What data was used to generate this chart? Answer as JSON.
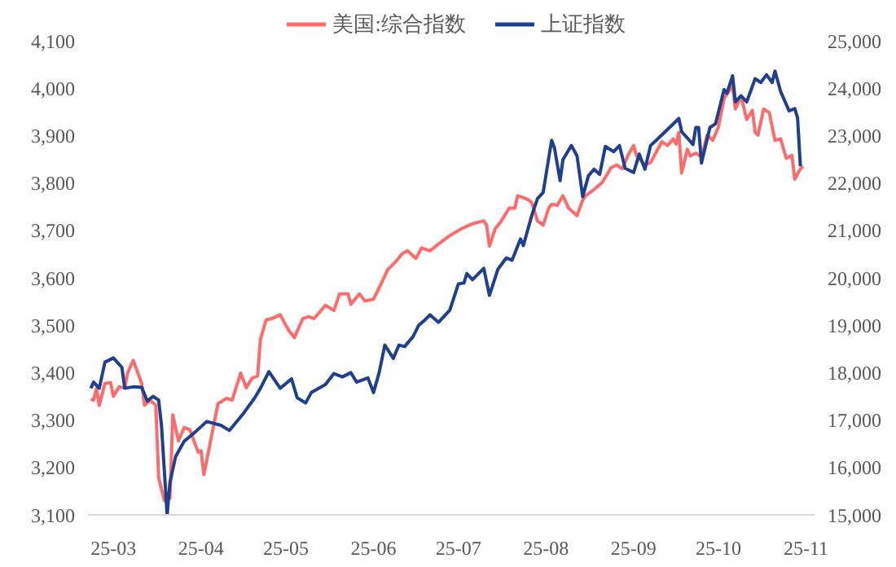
{
  "chart_data": {
    "type": "line",
    "legend": "top",
    "marker": "none",
    "line_style": "solid",
    "grid": false,
    "xlim": [
      "--02-20",
      "--11-04"
    ],
    "xticks": [
      {
        "value": "--03-01",
        "label": "25-03"
      },
      {
        "value": "--04-01",
        "label": "25-04"
      },
      {
        "value": "--05-01",
        "label": "25-05"
      },
      {
        "value": "--06-01",
        "label": "25-06"
      },
      {
        "value": "--07-01",
        "label": "25-07"
      },
      {
        "value": "--08-01",
        "label": "25-08"
      },
      {
        "value": "--09-01",
        "label": "25-09"
      },
      {
        "value": "--10-01",
        "label": "25-10"
      },
      {
        "value": "--11-01",
        "label": "25-11"
      }
    ],
    "ylim": [
      3100,
      4100
    ],
    "yticks": [
      {
        "value": 3100,
        "label": "3,100"
      },
      {
        "value": 3200,
        "label": "3,200"
      },
      {
        "value": 3300,
        "label": "3,300"
      },
      {
        "value": 3400,
        "label": "3,400"
      },
      {
        "value": 3500,
        "label": "3,500"
      },
      {
        "value": 3600,
        "label": "3,600"
      },
      {
        "value": 3700,
        "label": "3,700"
      },
      {
        "value": 3800,
        "label": "3,800"
      },
      {
        "value": 3900,
        "label": "3,900"
      },
      {
        "value": 4000,
        "label": "4,000"
      },
      {
        "value": 4100,
        "label": "4,100"
      }
    ],
    "y2lim": [
      15000,
      25000
    ],
    "y2ticks": [
      {
        "value": 15000,
        "label": "15,000"
      },
      {
        "value": 16000,
        "label": "16,000"
      },
      {
        "value": 17000,
        "label": "17,000"
      },
      {
        "value": 18000,
        "label": "18,000"
      },
      {
        "value": 19000,
        "label": "19,000"
      },
      {
        "value": 20000,
        "label": "20,000"
      },
      {
        "value": 21000,
        "label": "21,000"
      },
      {
        "value": 22000,
        "label": "22,000"
      },
      {
        "value": 23000,
        "label": "23,000"
      },
      {
        "value": 24000,
        "label": "24,000"
      },
      {
        "value": 25000,
        "label": "25,000"
      }
    ],
    "series": [
      {
        "name": "美国:综合指数",
        "color": "#ff6b6b",
        "axis": "y2",
        "x": [
          "--02-21",
          "--02-22",
          "--02-23",
          "--02-24",
          "--02-26",
          "--02-28",
          "--03-01",
          "--03-03",
          "--03-05",
          "--03-06",
          "--03-08",
          "--03-09",
          "--03-11",
          "--03-12",
          "--03-14",
          "--03-16",
          "--03-17",
          "--03-19",
          "--03-21",
          "--03-22",
          "--03-24",
          "--03-26",
          "--03-28",
          "--03-31",
          "--04-01",
          "--04-02",
          "--04-04",
          "--04-07",
          "--04-08",
          "--04-10",
          "--04-12",
          "--04-15",
          "--04-17",
          "--04-19",
          "--04-21",
          "--04-22",
          "--04-24",
          "--04-26",
          "--04-29",
          "--05-02",
          "--05-04",
          "--05-07",
          "--05-09",
          "--05-11",
          "--05-15",
          "--05-18",
          "--05-20",
          "--05-23",
          "--05-24",
          "--05-27",
          "--05-29",
          "--06-01",
          "--06-04",
          "--06-06",
          "--06-09",
          "--06-11",
          "--06-13",
          "--06-16",
          "--06-18",
          "--06-21",
          "--06-25",
          "--06-28",
          "--06-30",
          "--07-02",
          "--07-06",
          "--07-10",
          "--07-11",
          "--07-12",
          "--07-14",
          "--07-16",
          "--07-19",
          "--07-21",
          "--07-22",
          "--07-24",
          "--07-26",
          "--07-27",
          "--07-29",
          "--07-31",
          "--08-02",
          "--08-03",
          "--08-05",
          "--08-07",
          "--08-09",
          "--08-12",
          "--08-14",
          "--08-15",
          "--08-18",
          "--08-21",
          "--08-24",
          "--08-26",
          "--08-28",
          "--08-30",
          "--09-01",
          "--09-02",
          "--09-05",
          "--09-07",
          "--09-09",
          "--09-11",
          "--09-13",
          "--09-15",
          "--09-16",
          "--09-17",
          "--09-18",
          "--09-20",
          "--09-21",
          "--09-23",
          "--09-25",
          "--09-27",
          "--09-29",
          "--10-01",
          "--10-03",
          "--10-06",
          "--10-07",
          "--10-09",
          "--10-11",
          "--10-13",
          "--10-14",
          "--10-15",
          "--10-17",
          "--10-19",
          "--10-21",
          "--10-23",
          "--10-25",
          "--10-27",
          "--10-28",
          "--10-30",
          "--10-31"
        ],
        "values": [
          17440,
          17420,
          17660,
          17310,
          17770,
          17790,
          17500,
          17700,
          17680,
          17990,
          18260,
          18100,
          17770,
          17310,
          17420,
          17310,
          15790,
          15300,
          15350,
          17110,
          16560,
          16840,
          16800,
          16320,
          16350,
          15850,
          16450,
          17350,
          17380,
          17460,
          17420,
          17990,
          17680,
          17880,
          17930,
          18700,
          19110,
          19140,
          19220,
          18890,
          18740,
          19140,
          19180,
          19140,
          19420,
          19310,
          19660,
          19660,
          19440,
          19660,
          19510,
          19550,
          19910,
          20170,
          20350,
          20500,
          20570,
          20410,
          20630,
          20570,
          20760,
          20890,
          20960,
          21030,
          21140,
          21200,
          21110,
          20670,
          21030,
          21180,
          21470,
          21470,
          21730,
          21690,
          21640,
          21580,
          21200,
          21110,
          21470,
          21550,
          21530,
          21730,
          21470,
          21310,
          21640,
          21730,
          21860,
          22020,
          22320,
          22380,
          22300,
          22580,
          22790,
          22580,
          22380,
          22430,
          22650,
          22870,
          22790,
          22930,
          22820,
          23070,
          22210,
          22710,
          22570,
          22630,
          22540,
          23010,
          22900,
          23180,
          23780,
          24050,
          23560,
          23830,
          23340,
          23530,
          23070,
          23010,
          23560,
          23480,
          22900,
          22930,
          22520,
          22580,
          22080,
          22300,
          22350
        ]
      },
      {
        "name": "上证指数",
        "color": "#1f3f8f",
        "x": [
          "--02-21",
          "--02-22",
          "--02-24",
          "--02-26",
          "--03-01",
          "--03-04",
          "--03-05",
          "--03-08",
          "--03-11",
          "--03-13",
          "--03-15",
          "--03-17",
          "--03-18",
          "--03-20",
          "--03-21",
          "--03-23",
          "--03-26",
          "--03-30",
          "--04-03",
          "--04-08",
          "--04-11",
          "--04-16",
          "--04-20",
          "--04-22",
          "--04-25",
          "--04-29",
          "--05-03",
          "--05-05",
          "--05-08",
          "--05-10",
          "--05-15",
          "--05-18",
          "--05-21",
          "--05-24",
          "--05-26",
          "--05-30",
          "--06-01",
          "--06-03",
          "--06-05",
          "--06-08",
          "--06-10",
          "--06-12",
          "--06-15",
          "--06-17",
          "--06-19",
          "--06-21",
          "--06-24",
          "--06-28",
          "--07-01",
          "--07-03",
          "--07-04",
          "--07-06",
          "--07-10",
          "--07-12",
          "--07-15",
          "--07-18",
          "--07-20",
          "--07-23",
          "--07-24",
          "--07-27",
          "--07-29",
          "--07-31",
          "--08-03",
          "--08-04",
          "--08-06",
          "--08-07",
          "--08-10",
          "--08-12",
          "--08-14",
          "--08-16",
          "--08-18",
          "--08-20",
          "--08-22",
          "--08-25",
          "--08-27",
          "--08-29",
          "--09-01",
          "--09-03",
          "--09-05",
          "--09-07",
          "--09-09",
          "--09-17",
          "--09-18",
          "--09-20",
          "--09-22",
          "--09-23",
          "--09-24",
          "--09-25",
          "--09-28",
          "--09-30",
          "--10-03",
          "--10-04",
          "--10-06",
          "--10-07",
          "--10-09",
          "--10-11",
          "--10-14",
          "--10-16",
          "--10-18",
          "--10-20",
          "--10-21",
          "--10-23",
          "--10-26",
          "--10-28",
          "--10-29",
          "--10-30"
        ],
        "values": [
          3367,
          3380,
          3367,
          3422,
          3431,
          3411,
          3367,
          3370,
          3369,
          3340,
          3350,
          3342,
          3289,
          3100,
          3168,
          3223,
          3255,
          3275,
          3297,
          3289,
          3278,
          3314,
          3347,
          3367,
          3402,
          3367,
          3387,
          3347,
          3336,
          3358,
          3375,
          3398,
          3391,
          3400,
          3380,
          3389,
          3358,
          3400,
          3458,
          3430,
          3458,
          3455,
          3476,
          3500,
          3510,
          3522,
          3506,
          3532,
          3587,
          3589,
          3609,
          3596,
          3620,
          3563,
          3618,
          3642,
          3637,
          3682,
          3668,
          3732,
          3767,
          3780,
          3890,
          3874,
          3805,
          3849,
          3879,
          3857,
          3771,
          3815,
          3829,
          3818,
          3877,
          3866,
          3879,
          3831,
          3822,
          3861,
          3829,
          3879,
          3890,
          3936,
          3908,
          3895,
          3881,
          3917,
          3917,
          3842,
          3917,
          3925,
          3997,
          3989,
          4026,
          3971,
          3984,
          3971,
          4020,
          4012,
          4028,
          4012,
          4036,
          3993,
          3952,
          3957,
          3937,
          3835
        ]
      }
    ]
  }
}
